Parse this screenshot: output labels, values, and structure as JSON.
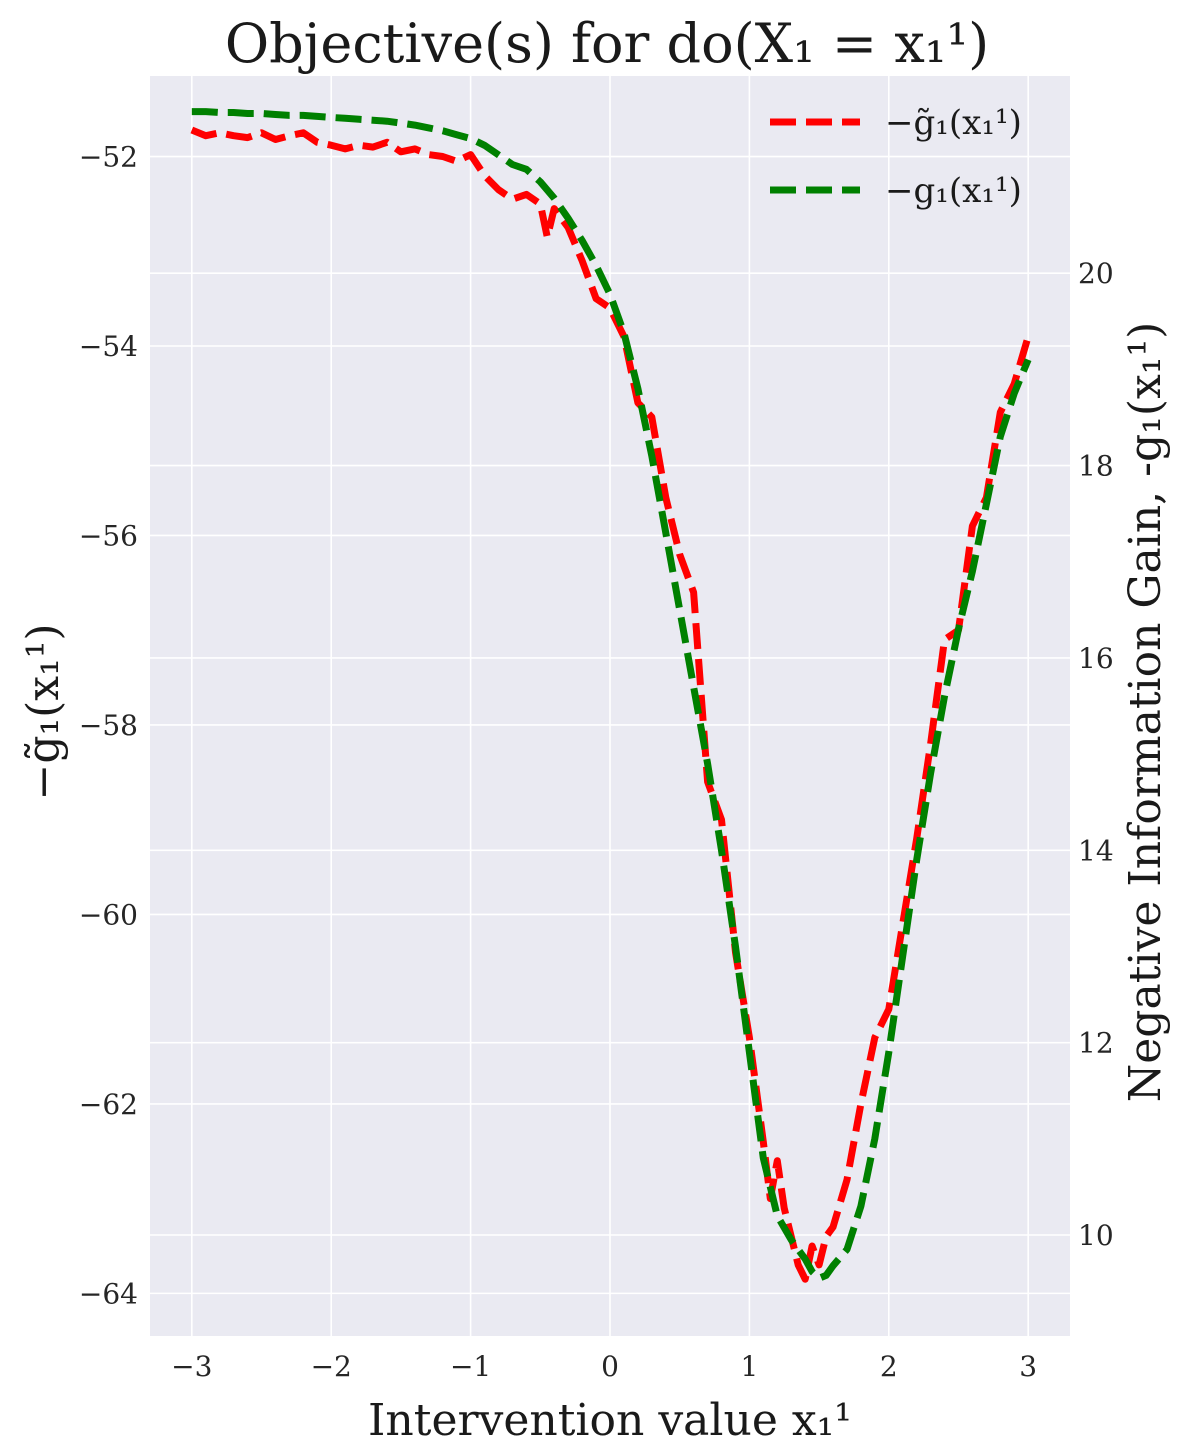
{
  "chart_data": {
    "type": "line",
    "title": "Objective(s) for do(X₁ = x₁¹)",
    "xlabel": "Intervention value x₁¹",
    "ylabel_left": "−g̃₁(x₁¹)",
    "ylabel_right": "Negative Information Gain, -g₁(x₁¹)",
    "xlim": [
      -3.3,
      3.3
    ],
    "ylim_left": [
      -64.45,
      -51.15
    ],
    "ylim_right": [
      8.95,
      22.05
    ],
    "x_ticks": [
      -3,
      -2,
      -1,
      0,
      1,
      2,
      3
    ],
    "x_tick_labels": [
      "−3",
      "−2",
      "−1",
      "0",
      "1",
      "2",
      "3"
    ],
    "y_left_ticks": [
      -64,
      -62,
      -60,
      -58,
      -56,
      -54,
      -52
    ],
    "y_left_tick_labels": [
      "−64",
      "−62",
      "−60",
      "−58",
      "−56",
      "−54",
      "−52"
    ],
    "y_right_ticks": [
      10,
      12,
      14,
      16,
      18,
      20
    ],
    "y_right_tick_labels": [
      "10",
      "12",
      "14",
      "16",
      "18",
      "20"
    ],
    "grid": true,
    "legend_position": "top-right",
    "series": [
      {
        "name": "−g̃₁(x₁¹)",
        "axis": "left",
        "color": "#ff0000",
        "style": "dashed",
        "x": [
          -3.0,
          -2.9,
          -2.8,
          -2.7,
          -2.6,
          -2.5,
          -2.4,
          -2.3,
          -2.2,
          -2.1,
          -2.0,
          -1.9,
          -1.8,
          -1.7,
          -1.6,
          -1.5,
          -1.4,
          -1.3,
          -1.2,
          -1.1,
          -1.0,
          -0.9,
          -0.8,
          -0.7,
          -0.6,
          -0.5,
          -0.45,
          -0.4,
          -0.3,
          -0.2,
          -0.1,
          0.0,
          0.1,
          0.2,
          0.3,
          0.4,
          0.5,
          0.6,
          0.7,
          0.8,
          0.9,
          1.0,
          1.1,
          1.15,
          1.2,
          1.25,
          1.3,
          1.35,
          1.4,
          1.45,
          1.5,
          1.55,
          1.6,
          1.7,
          1.8,
          1.9,
          2.0,
          2.1,
          2.2,
          2.3,
          2.4,
          2.5,
          2.6,
          2.7,
          2.8,
          2.9,
          3.0
        ],
        "values": [
          -51.72,
          -51.78,
          -51.75,
          -51.78,
          -51.8,
          -51.75,
          -51.82,
          -51.78,
          -51.75,
          -51.85,
          -51.88,
          -51.92,
          -51.88,
          -51.9,
          -51.85,
          -51.95,
          -51.92,
          -51.98,
          -52.0,
          -52.05,
          -51.98,
          -52.2,
          -52.35,
          -52.45,
          -52.4,
          -52.5,
          -52.85,
          -52.55,
          -52.75,
          -53.1,
          -53.5,
          -53.6,
          -53.9,
          -54.6,
          -54.75,
          -55.6,
          -56.2,
          -56.6,
          -58.6,
          -59.0,
          -60.4,
          -61.3,
          -62.4,
          -63.0,
          -62.6,
          -63.1,
          -63.4,
          -63.7,
          -63.85,
          -63.5,
          -63.7,
          -63.4,
          -63.3,
          -62.8,
          -62.0,
          -61.3,
          -61.0,
          -60.1,
          -59.2,
          -58.2,
          -57.1,
          -57.0,
          -55.9,
          -55.6,
          -54.7,
          -54.4,
          -53.9
        ]
      },
      {
        "name": "−g₁(x₁¹)",
        "axis": "right",
        "color": "#008000",
        "style": "dashed",
        "x": [
          -3.0,
          -2.9,
          -2.8,
          -2.7,
          -2.6,
          -2.5,
          -2.4,
          -2.3,
          -2.2,
          -2.1,
          -2.0,
          -1.9,
          -1.8,
          -1.7,
          -1.6,
          -1.5,
          -1.4,
          -1.3,
          -1.2,
          -1.1,
          -1.0,
          -0.9,
          -0.8,
          -0.7,
          -0.6,
          -0.5,
          -0.4,
          -0.3,
          -0.2,
          -0.1,
          0.0,
          0.1,
          0.2,
          0.3,
          0.4,
          0.5,
          0.6,
          0.7,
          0.8,
          0.9,
          1.0,
          1.1,
          1.2,
          1.3,
          1.4,
          1.45,
          1.5,
          1.55,
          1.6,
          1.7,
          1.8,
          1.9,
          2.0,
          2.1,
          2.2,
          2.3,
          2.4,
          2.5,
          2.6,
          2.7,
          2.8,
          2.9,
          3.0
        ],
        "values": [
          21.68,
          21.68,
          21.67,
          21.67,
          21.66,
          21.66,
          21.65,
          21.64,
          21.64,
          21.63,
          21.62,
          21.61,
          21.6,
          21.59,
          21.58,
          21.56,
          21.54,
          21.51,
          21.48,
          21.44,
          21.4,
          21.33,
          21.23,
          21.13,
          21.08,
          20.95,
          20.78,
          20.57,
          20.34,
          20.08,
          19.78,
          19.38,
          18.8,
          18.1,
          17.3,
          16.5,
          15.7,
          14.9,
          14.0,
          13.0,
          11.9,
          10.8,
          10.2,
          9.95,
          9.75,
          9.62,
          9.55,
          9.58,
          9.68,
          9.85,
          10.3,
          11.0,
          11.9,
          12.9,
          13.9,
          14.8,
          15.6,
          16.3,
          16.9,
          17.6,
          18.3,
          18.75,
          19.1
        ]
      }
    ]
  }
}
